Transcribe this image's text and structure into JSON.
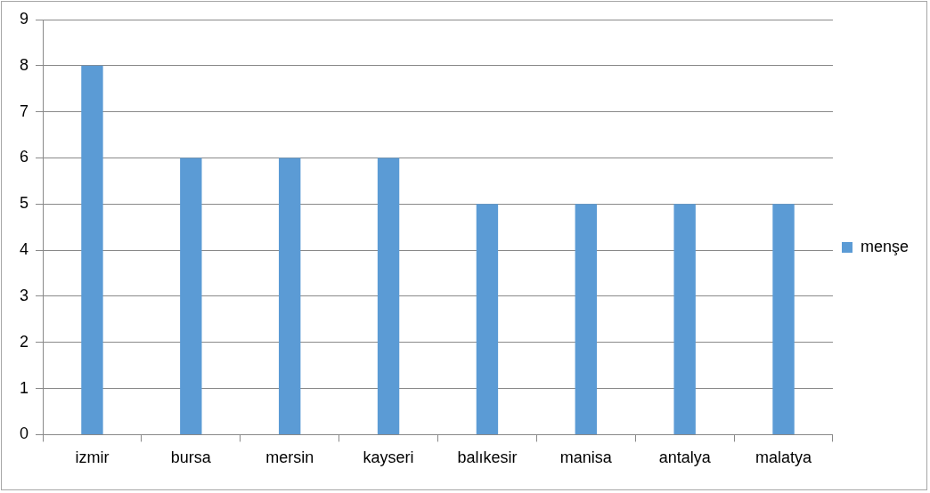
{
  "chart_data": {
    "type": "bar",
    "categories": [
      "izmir",
      "bursa",
      "mersin",
      "kayseri",
      "balıkesir",
      "manisa",
      "antalya",
      "malatya"
    ],
    "series": [
      {
        "name": "menşe",
        "color": "#5b9bd5",
        "values": [
          8,
          6,
          6,
          6,
          5,
          5,
          5,
          5
        ]
      }
    ],
    "ylim": [
      0,
      9
    ],
    "yticks": [
      0,
      1,
      2,
      3,
      4,
      5,
      6,
      7,
      8,
      9
    ],
    "grid": "y",
    "legend": "right"
  }
}
